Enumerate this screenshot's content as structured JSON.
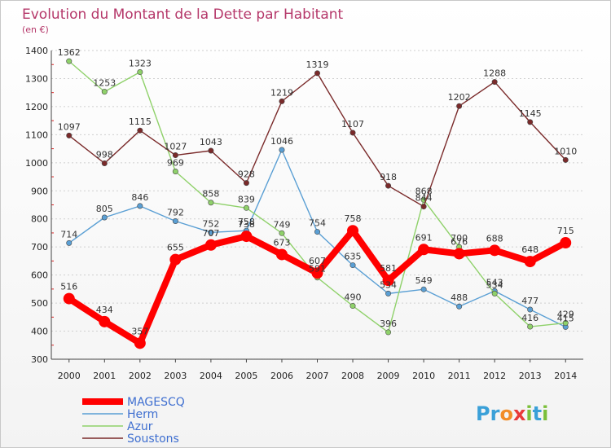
{
  "title": "Evolution du Montant de la Dette par Habitant",
  "unit": "(en €)",
  "brand": {
    "letters": [
      "P",
      "r",
      "o",
      "x",
      "i",
      "t",
      "i"
    ],
    "colors": [
      "#3aa0d8",
      "#3aa0d8",
      "#f28c28",
      "#e83a3a",
      "#7bbf3a",
      "#3aa0d8",
      "#7bbf3a"
    ]
  },
  "chart_data": {
    "type": "line",
    "x": [
      "2000",
      "2001",
      "2002",
      "2003",
      "2004",
      "2005",
      "2006",
      "2007",
      "2008",
      "2009",
      "2010",
      "2011",
      "2012",
      "2013",
      "2014"
    ],
    "ylim": [
      300,
      1400
    ],
    "yticks": [
      300,
      400,
      500,
      600,
      700,
      800,
      900,
      1000,
      1100,
      1200,
      1300,
      1400
    ],
    "grid": "horizontal-dashed",
    "legend": "bottom-left",
    "series": [
      {
        "name": "MAGESCQ",
        "color": "#ff0000",
        "values": [
          516,
          434,
          357,
          655,
          707,
          738,
          673,
          607,
          758,
          581,
          691,
          676,
          688,
          648,
          715
        ]
      },
      {
        "name": "Herm",
        "color": "#5a9fd4",
        "values": [
          714,
          805,
          846,
          792,
          752,
          758,
          1046,
          754,
          635,
          534,
          549,
          488,
          543,
          477,
          415
        ]
      },
      {
        "name": "Azur",
        "color": "#8fd16a",
        "values": [
          1362,
          1253,
          1323,
          969,
          858,
          839,
          749,
          591,
          490,
          396,
          868,
          700,
          534,
          416,
          429
        ]
      },
      {
        "name": "Soustons",
        "color": "#7a2a2a",
        "values": [
          1097,
          998,
          1115,
          1027,
          1043,
          928,
          1219,
          1319,
          1107,
          918,
          844,
          1202,
          1288,
          1145,
          1010
        ]
      }
    ]
  }
}
